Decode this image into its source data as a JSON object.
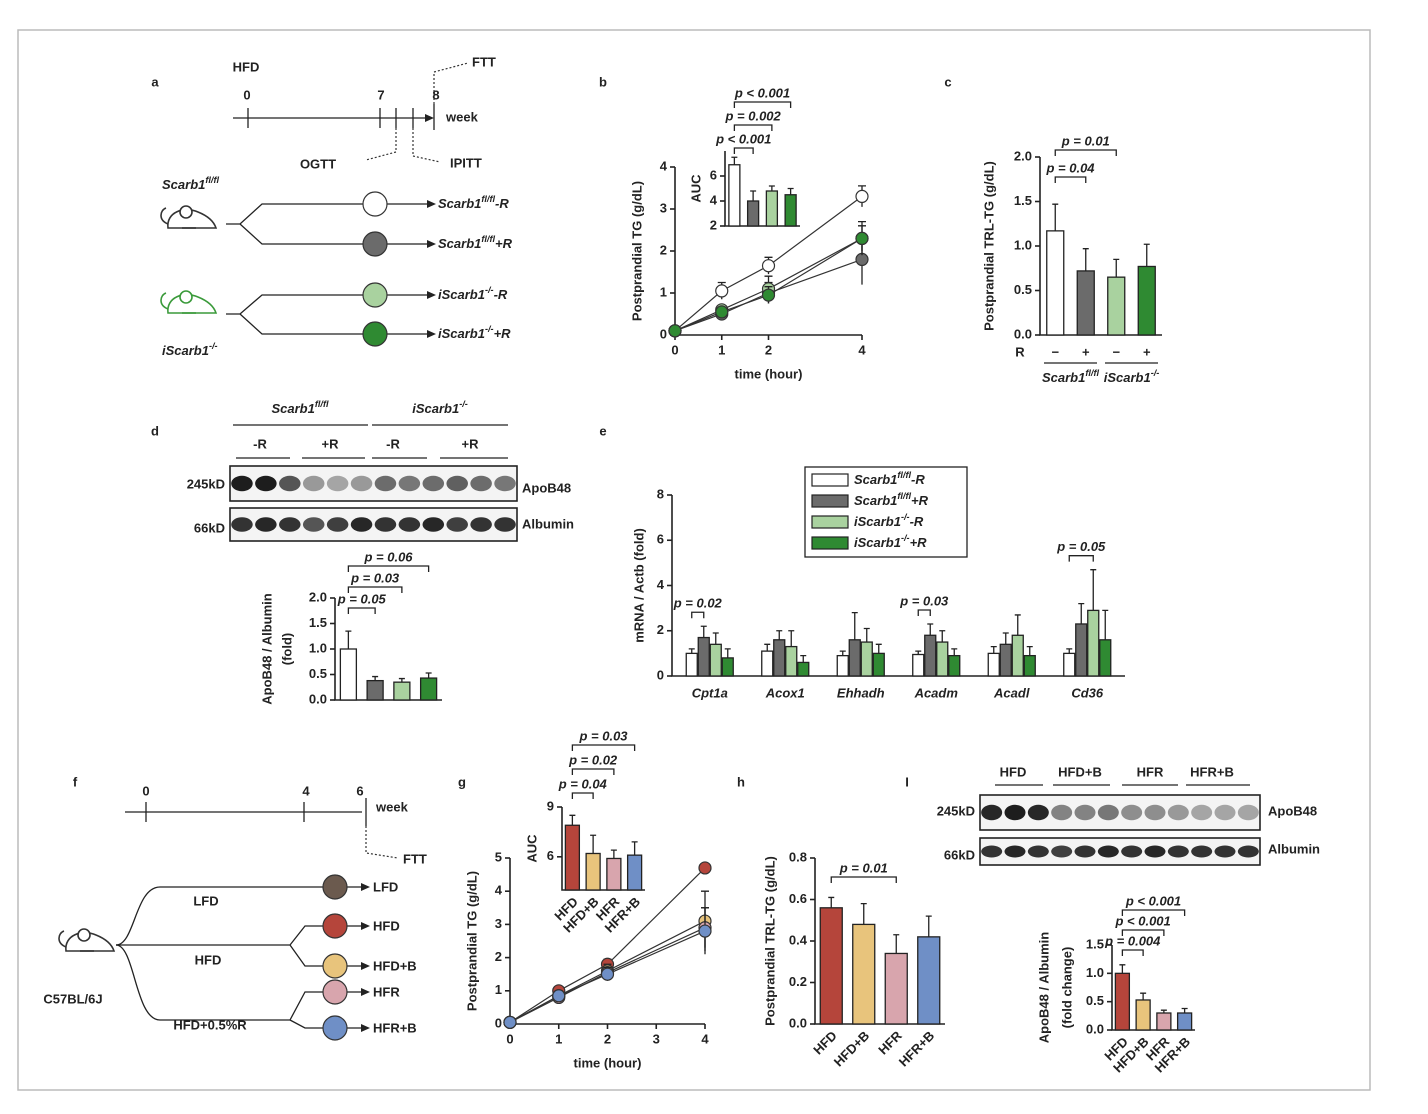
{
  "panel_labels": [
    "a",
    "b",
    "c",
    "d",
    "e",
    "f",
    "g",
    "h",
    "I"
  ],
  "diagram_a": {
    "diet": "HFD",
    "timeline": {
      "ticks": [
        "0",
        "7",
        "8"
      ],
      "unit": "week"
    },
    "tests": [
      "FTT",
      "OGTT",
      "IPITT"
    ],
    "mice": [
      {
        "gene": "Scarb1",
        "sup": "fl/fl"
      },
      {
        "gene": "iScarb1",
        "sup": "-/-"
      }
    ],
    "groups": [
      {
        "gene": "Scarb1",
        "sup": "fl/fl",
        "suffix": "-R"
      },
      {
        "gene": "Scarb1",
        "sup": "fl/fl",
        "suffix": "+R"
      },
      {
        "gene": "iScarb1",
        "sup": "-/-",
        "suffix": "-R"
      },
      {
        "gene": "iScarb1",
        "sup": "-/-",
        "suffix": "+R"
      }
    ]
  },
  "diagram_f": {
    "timeline": {
      "ticks": [
        "0",
        "4",
        "6"
      ],
      "unit": "week"
    },
    "test": "FTT",
    "strain": "C57BL/6J",
    "diets": [
      "LFD",
      "HFD",
      "HFD+0.5%R"
    ],
    "groups": [
      "LFD",
      "HFD",
      "HFD+B",
      "HFR",
      "HFR+B"
    ]
  },
  "blot_d": {
    "genotypes": [
      {
        "gene": "Scarb1",
        "sup": "fl/fl"
      },
      {
        "gene": "iScarb1",
        "sup": "-/-"
      }
    ],
    "treatments": [
      "-R",
      "+R",
      "-R",
      "+R"
    ],
    "sizes": [
      "245kD",
      "66kD"
    ],
    "proteins": [
      "ApoB48",
      "Albumin"
    ]
  },
  "blot_i": {
    "groups": [
      "HFD",
      "HFD+B",
      "HFR",
      "HFR+B"
    ],
    "sizes": [
      "245kD",
      "66kD"
    ],
    "proteins": [
      "ApoB48",
      "Albumin"
    ]
  },
  "chart_data": [
    {
      "type": "line",
      "x": [
        0,
        1,
        2,
        4
      ],
      "xlim": [
        0,
        4
      ],
      "xticks": [
        0,
        1,
        2,
        4
      ],
      "ylim": [
        0,
        4
      ],
      "yticks": [
        0,
        1,
        2,
        3,
        4
      ],
      "x_label": "time (hour)",
      "y_label": "Postprandial TG (g/dL)",
      "series": [
        {
          "color": "#ffffff",
          "values": [
            0.1,
            1.05,
            1.65,
            3.3
          ],
          "errors": [
            0.03,
            0.2,
            0.2,
            0.25
          ]
        },
        {
          "color": "#6b6b6b",
          "values": [
            0.1,
            0.5,
            1.0,
            1.8
          ],
          "errors": [
            0.03,
            0.1,
            0.25,
            0.6
          ]
        },
        {
          "color": "#a9d29f",
          "values": [
            0.1,
            0.6,
            1.1,
            2.3
          ],
          "errors": [
            0.03,
            0.1,
            0.3,
            0.4
          ]
        },
        {
          "color": "#2f8a32",
          "values": [
            0.1,
            0.55,
            0.95,
            2.3
          ],
          "errors": [
            0.03,
            0.08,
            0.2,
            0.3
          ]
        }
      ]
    },
    {
      "type": "bar",
      "y_label": "AUC",
      "categories": [
        null,
        null,
        null,
        null
      ],
      "values": [
        6.9,
        4.0,
        4.8,
        4.5
      ],
      "errors": [
        0.6,
        0.8,
        0.4,
        0.5
      ],
      "colors": [
        "#ffffff",
        "#6b6b6b",
        "#a9d29f",
        "#2f8a32"
      ],
      "ylim": [
        2,
        8
      ],
      "yticks": [
        2,
        4,
        6
      ],
      "annotations": [
        {
          "text": "p < 0.001",
          "between": [
            0,
            1
          ]
        },
        {
          "text": "p = 0.002",
          "between": [
            0,
            2
          ]
        },
        {
          "text": "p < 0.001",
          "between": [
            0,
            3
          ]
        }
      ]
    },
    {
      "type": "bar",
      "y_label": "Postprandial  TRL-TG (g/dL)",
      "categories": [
        "−",
        "+",
        "−",
        "+"
      ],
      "category_row_label": "R",
      "groups": [
        {
          "gene": "Scarb1",
          "sup": "fl/fl"
        },
        {
          "gene": "iScarb1",
          "sup": "-/-"
        }
      ],
      "values": [
        1.17,
        0.72,
        0.65,
        0.77
      ],
      "errors": [
        0.3,
        0.25,
        0.2,
        0.25
      ],
      "colors": [
        "#ffffff",
        "#6b6b6b",
        "#a9d29f",
        "#2f8a32"
      ],
      "ylim": [
        0,
        2
      ],
      "yticks": [
        {
          "value": 0,
          "label": "0.0"
        },
        0.5,
        {
          "value": 1,
          "label": "1.0"
        },
        1.5,
        {
          "value": 2,
          "label": "2.0"
        }
      ],
      "annotations": [
        {
          "text": "p = 0.04",
          "between": [
            0,
            1
          ]
        },
        {
          "text": "p = 0.01",
          "between": [
            0,
            2
          ]
        }
      ]
    },
    {
      "type": "bar",
      "y_label": [
        "ApoB48 / Albumin",
        "(fold)"
      ],
      "categories": [
        null,
        null,
        null,
        null
      ],
      "values": [
        1.0,
        0.38,
        0.35,
        0.43
      ],
      "errors": [
        0.35,
        0.08,
        0.07,
        0.1
      ],
      "colors": [
        "#ffffff",
        "#6b6b6b",
        "#a9d29f",
        "#2f8a32"
      ],
      "ylim": [
        0,
        2
      ],
      "yticks": [
        {
          "value": 0,
          "label": "0.0"
        },
        0.5,
        {
          "value": 1,
          "label": "1.0"
        },
        1.5,
        {
          "value": 2,
          "label": "2.0"
        }
      ],
      "annotations": [
        {
          "text": "p = 0.05",
          "between": [
            0,
            1
          ]
        },
        {
          "text": "p = 0.03",
          "between": [
            0,
            2
          ]
        },
        {
          "text": "p = 0.06",
          "between": [
            0,
            3
          ]
        }
      ]
    },
    {
      "type": "bar",
      "y_label": "mRNA / Actb (fold)",
      "categories": [
        "Cpt1a",
        "Acox1",
        "Ehhadh",
        "Acadm",
        "Acadl",
        "Cd36"
      ],
      "ylim": [
        0,
        8
      ],
      "yticks": [
        0,
        2,
        4,
        6,
        8
      ],
      "legend": true,
      "series": [
        {
          "name": {
            "gene": "Scarb1",
            "sup": "fl/fl",
            "suffix": "-R"
          },
          "color": "#ffffff",
          "values": [
            1.0,
            1.1,
            0.9,
            0.95,
            1.0,
            1.0
          ],
          "errors": [
            0.2,
            0.3,
            0.2,
            0.15,
            0.3,
            0.2
          ]
        },
        {
          "name": {
            "gene": "Scarb1",
            "sup": "fl/fl",
            "suffix": "+R"
          },
          "color": "#6b6b6b",
          "values": [
            1.7,
            1.6,
            1.6,
            1.8,
            1.4,
            2.3
          ],
          "errors": [
            0.5,
            0.4,
            1.2,
            0.5,
            0.5,
            0.9
          ]
        },
        {
          "name": {
            "gene": "iScarb1",
            "sup": "-/-",
            "suffix": "-R"
          },
          "color": "#a9d29f",
          "values": [
            1.4,
            1.3,
            1.5,
            1.5,
            1.8,
            2.9
          ],
          "errors": [
            0.5,
            0.7,
            0.6,
            0.5,
            0.9,
            1.8
          ]
        },
        {
          "name": {
            "gene": "iScarb1",
            "sup": "-/-",
            "suffix": "+R"
          },
          "color": "#2f8a32",
          "values": [
            0.8,
            0.6,
            1.0,
            0.9,
            0.9,
            1.6
          ],
          "errors": [
            0.4,
            0.3,
            0.4,
            0.3,
            0.4,
            1.3
          ]
        }
      ],
      "annotations": [
        {
          "text": "p = 0.02",
          "category": 0,
          "between": [
            0,
            1
          ]
        },
        {
          "text": "p = 0.03",
          "category": 3,
          "between": [
            0,
            1
          ]
        },
        {
          "text": "p = 0.05",
          "category": 5,
          "between": [
            0,
            2
          ]
        }
      ]
    },
    {
      "type": "line",
      "x": [
        0,
        1,
        2,
        4
      ],
      "xlim": [
        0,
        4
      ],
      "xticks": [
        0,
        1,
        2,
        3,
        4
      ],
      "ylim": [
        0,
        5
      ],
      "yticks": [
        0,
        1,
        2,
        3,
        4,
        5
      ],
      "x_label": "time (hour)",
      "y_label": "Postprandial TG (g/dL)",
      "series": [
        {
          "color": "#b5453b",
          "values": [
            0.05,
            1.0,
            1.8,
            4.7
          ],
          "errors": [
            0.03,
            0.1,
            0.15,
            0.05
          ]
        },
        {
          "color": "#e8c47c",
          "values": [
            0.05,
            0.85,
            1.6,
            3.1
          ],
          "errors": [
            0.03,
            0.15,
            0.2,
            0.9
          ]
        },
        {
          "color": "#d8a5ad",
          "values": [
            0.05,
            0.8,
            1.55,
            2.9
          ],
          "errors": [
            0.03,
            0.1,
            0.15,
            0.6
          ]
        },
        {
          "color": "#6f8fc6",
          "values": [
            0.05,
            0.85,
            1.5,
            2.8
          ],
          "errors": [
            0.03,
            0.1,
            0.2,
            0.7
          ]
        }
      ]
    },
    {
      "type": "bar",
      "y_label": "AUC",
      "categories": [
        "HFD",
        "HFD+B",
        "HFR",
        "HFR+B"
      ],
      "values": [
        7.9,
        6.2,
        5.9,
        6.1
      ],
      "errors": [
        0.6,
        1.1,
        0.5,
        0.8
      ],
      "colors": [
        "#b5453b",
        "#e8c47c",
        "#d8a5ad",
        "#6f8fc6"
      ],
      "ylim": [
        4,
        9
      ],
      "yticks": [
        6,
        9
      ],
      "annotations": [
        {
          "text": "p = 0.04",
          "between": [
            0,
            1
          ]
        },
        {
          "text": "p = 0.02",
          "between": [
            0,
            2
          ]
        },
        {
          "text": "p = 0.03",
          "between": [
            0,
            3
          ]
        }
      ]
    },
    {
      "type": "bar",
      "y_label": "Postprandial TRL-TG (g/dL)",
      "categories": [
        "HFD",
        "HFD+B",
        "HFR",
        "HFR+B"
      ],
      "values": [
        0.56,
        0.48,
        0.34,
        0.42
      ],
      "errors": [
        0.05,
        0.1,
        0.09,
        0.1
      ],
      "colors": [
        "#b5453b",
        "#e8c47c",
        "#d8a5ad",
        "#6f8fc6"
      ],
      "ylim": [
        0,
        0.8
      ],
      "yticks": [
        {
          "value": 0,
          "label": "0.0"
        },
        0.2,
        0.4,
        0.6,
        0.8
      ],
      "annotations": [
        {
          "text": "p = 0.01",
          "between": [
            0,
            2
          ]
        }
      ]
    },
    {
      "type": "bar",
      "y_label": [
        "ApoB48 / Albumin",
        "(fold change)"
      ],
      "categories": [
        "HFD",
        "HFD+B",
        "HFR",
        "HFR+B"
      ],
      "values": [
        1.0,
        0.53,
        0.3,
        0.3
      ],
      "errors": [
        0.15,
        0.12,
        0.05,
        0.08
      ],
      "colors": [
        "#b5453b",
        "#e8c47c",
        "#d8a5ad",
        "#6f8fc6"
      ],
      "ylim": [
        0,
        1.5
      ],
      "yticks": [
        {
          "value": 0,
          "label": "0.0"
        },
        0.5,
        {
          "value": 1,
          "label": "1.0"
        },
        1.5
      ],
      "annotations": [
        {
          "text": "p = 0.004",
          "between": [
            0,
            1
          ]
        },
        {
          "text": "p < 0.001",
          "between": [
            0,
            2
          ]
        },
        {
          "text": "p < 0.001",
          "between": [
            0,
            3
          ]
        }
      ]
    }
  ]
}
